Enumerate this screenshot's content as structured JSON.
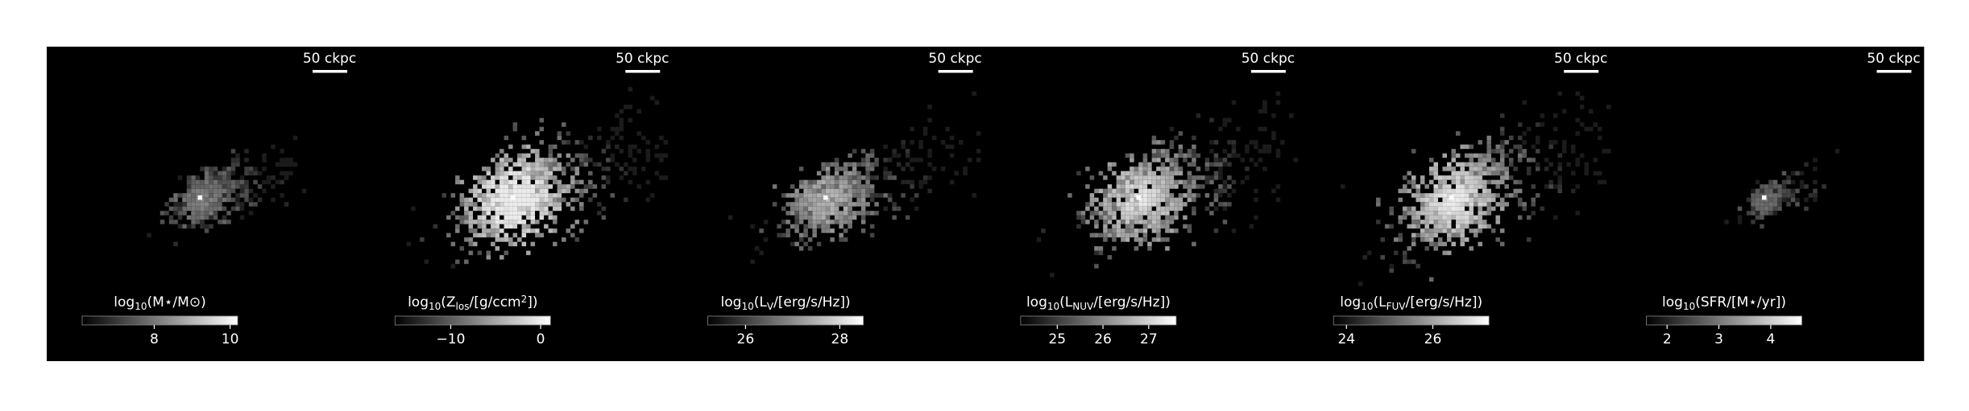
{
  "panels": [
    {
      "scale_bar": "50 ckpc",
      "colorbar": {
        "label": [
          {
            "t": "log"
          },
          {
            "t": "10",
            "pos": "sub"
          },
          {
            "t": "(M⋆/M⊙)"
          }
        ],
        "range": [
          6.1,
          10.2
        ],
        "ticks": [
          8,
          10
        ]
      }
    },
    {
      "scale_bar": "50 ckpc",
      "colorbar": {
        "label": [
          {
            "t": "log"
          },
          {
            "t": "10",
            "pos": "sub"
          },
          {
            "t": "(Z"
          },
          {
            "t": "los",
            "pos": "sub"
          },
          {
            "t": "/[g/ccm"
          },
          {
            "t": "2",
            "pos": "sup"
          },
          {
            "t": "])"
          }
        ],
        "range": [
          -16.2,
          1.1
        ],
        "ticks": [
          {
            "value": -10,
            "label": "−10"
          },
          0
        ]
      }
    },
    {
      "scale_bar": "50 ckpc",
      "colorbar": {
        "label": [
          {
            "t": "log"
          },
          {
            "t": "10",
            "pos": "sub"
          },
          {
            "t": "(L"
          },
          {
            "t": "V",
            "pos": "sub"
          },
          {
            "t": "/[erg/s/Hz])"
          }
        ],
        "range": [
          25.2,
          28.5
        ],
        "ticks": [
          26,
          28
        ]
      }
    },
    {
      "scale_bar": "50 ckpc",
      "colorbar": {
        "label": [
          {
            "t": "log"
          },
          {
            "t": "10",
            "pos": "sub"
          },
          {
            "t": "(L"
          },
          {
            "t": "NUV",
            "pos": "sub"
          },
          {
            "t": "/[erg/s/Hz])"
          }
        ],
        "range": [
          24.2,
          27.6
        ],
        "ticks": [
          25,
          26,
          27
        ]
      }
    },
    {
      "scale_bar": "50 ckpc",
      "colorbar": {
        "label": [
          {
            "t": "log"
          },
          {
            "t": "10",
            "pos": "sub"
          },
          {
            "t": "(L"
          },
          {
            "t": "FUV",
            "pos": "sub"
          },
          {
            "t": "/[erg/s/Hz])"
          }
        ],
        "range": [
          23.7,
          27.3
        ],
        "ticks": [
          24,
          26
        ]
      }
    },
    {
      "scale_bar": "50 ckpc",
      "colorbar": {
        "label": [
          {
            "t": "log"
          },
          {
            "t": "10",
            "pos": "sub"
          },
          {
            "t": "(SFR/[M⋆/yr])"
          }
        ],
        "range": [
          1.6,
          4.6
        ],
        "ticks": [
          2,
          3,
          4
        ]
      }
    }
  ]
}
